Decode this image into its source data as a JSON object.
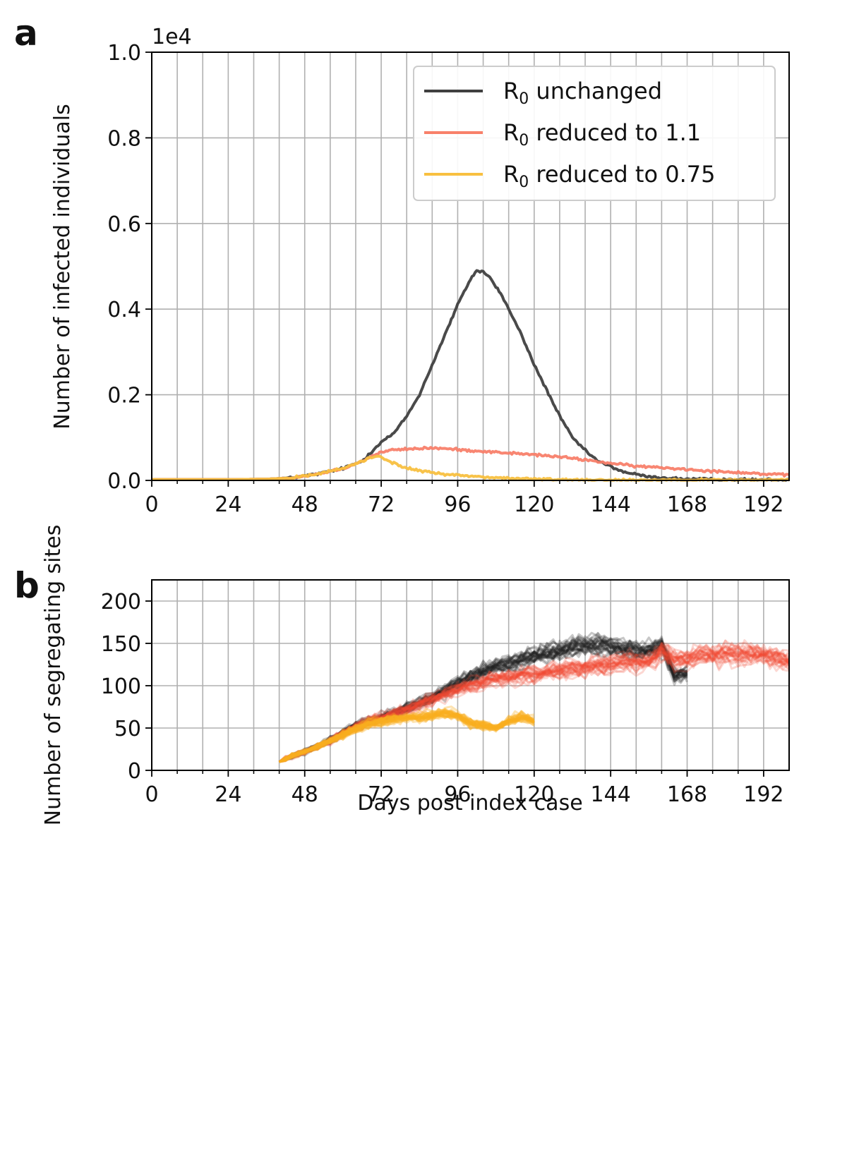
{
  "figure": {
    "panel_a_label": "a",
    "panel_b_label": "b"
  },
  "chart_data": [
    {
      "type": "line",
      "panel": "a",
      "ylabel": "Number of infected individuals",
      "y_offset_label": "1e4",
      "xlim": [
        0,
        200
      ],
      "ylim": [
        0,
        1.0
      ],
      "x_ticks": [
        0,
        24,
        48,
        72,
        96,
        120,
        144,
        168,
        192
      ],
      "x_tick_labels": [
        "0",
        "24",
        "48",
        "72",
        "96",
        "120",
        "144",
        "168",
        "192"
      ],
      "y_ticks": [
        0,
        0.2,
        0.4,
        0.6,
        0.8,
        1.0
      ],
      "y_tick_labels": [
        "0.0",
        "0.2",
        "0.4",
        "0.6",
        "0.8",
        "1.0"
      ],
      "grid": "vertical every 8 days, horizontal at major y ticks",
      "legend_position": "top-right",
      "series": [
        {
          "name": "R₀ unchanged",
          "name_base": "R",
          "name_sub": "0",
          "name_rest": " unchanged",
          "color": "#404040",
          "points": [
            [
              0,
              0.002
            ],
            [
              24,
              0.002
            ],
            [
              36,
              0.003
            ],
            [
              44,
              0.006
            ],
            [
              52,
              0.015
            ],
            [
              60,
              0.028
            ],
            [
              66,
              0.045
            ],
            [
              72,
              0.09
            ],
            [
              76,
              0.11
            ],
            [
              80,
              0.15
            ],
            [
              84,
              0.2
            ],
            [
              88,
              0.27
            ],
            [
              92,
              0.34
            ],
            [
              96,
              0.41
            ],
            [
              100,
              0.47
            ],
            [
              102,
              0.49
            ],
            [
              104,
              0.487
            ],
            [
              106,
              0.475
            ],
            [
              110,
              0.43
            ],
            [
              116,
              0.34
            ],
            [
              120,
              0.27
            ],
            [
              124,
              0.21
            ],
            [
              128,
              0.15
            ],
            [
              132,
              0.1
            ],
            [
              136,
              0.07
            ],
            [
              140,
              0.045
            ],
            [
              148,
              0.02
            ],
            [
              156,
              0.008
            ],
            [
              168,
              0.003
            ],
            [
              200,
              0.001
            ]
          ]
        },
        {
          "name": "R₀ reduced to 1.1",
          "name_base": "R",
          "name_sub": "0",
          "name_rest": " reduced to 1.1",
          "color": "#f8806a",
          "points": [
            [
              0,
              0.002
            ],
            [
              24,
              0.002
            ],
            [
              36,
              0.003
            ],
            [
              44,
              0.006
            ],
            [
              52,
              0.015
            ],
            [
              60,
              0.028
            ],
            [
              66,
              0.045
            ],
            [
              70,
              0.06
            ],
            [
              74,
              0.07
            ],
            [
              80,
              0.073
            ],
            [
              88,
              0.076
            ],
            [
              96,
              0.072
            ],
            [
              104,
              0.068
            ],
            [
              112,
              0.064
            ],
            [
              120,
              0.06
            ],
            [
              128,
              0.055
            ],
            [
              136,
              0.048
            ],
            [
              144,
              0.04
            ],
            [
              152,
              0.033
            ],
            [
              160,
              0.03
            ],
            [
              168,
              0.026
            ],
            [
              176,
              0.022
            ],
            [
              184,
              0.019
            ],
            [
              192,
              0.015
            ],
            [
              200,
              0.012
            ]
          ]
        },
        {
          "name": "R₀ reduced to 0.75",
          "name_base": "R",
          "name_sub": "0",
          "name_rest": " reduced to 0.75",
          "color": "#f8c040",
          "points": [
            [
              0,
              0.002
            ],
            [
              24,
              0.002
            ],
            [
              36,
              0.003
            ],
            [
              44,
              0.006
            ],
            [
              52,
              0.015
            ],
            [
              60,
              0.028
            ],
            [
              66,
              0.045
            ],
            [
              70,
              0.057
            ],
            [
              72,
              0.055
            ],
            [
              76,
              0.04
            ],
            [
              80,
              0.028
            ],
            [
              88,
              0.018
            ],
            [
              96,
              0.012
            ],
            [
              104,
              0.008
            ],
            [
              112,
              0.005
            ],
            [
              120,
              0.003
            ],
            [
              132,
              0.002
            ],
            [
              144,
              0.001
            ],
            [
              200,
              0.001
            ]
          ]
        }
      ]
    },
    {
      "type": "line",
      "panel": "b",
      "xlabel": "Days post index case",
      "ylabel": "Number of segregating sites",
      "xlim": [
        0,
        200
      ],
      "ylim": [
        0,
        225
      ],
      "x_ticks": [
        0,
        24,
        48,
        72,
        96,
        120,
        144,
        168,
        192
      ],
      "x_tick_labels": [
        "0",
        "24",
        "48",
        "72",
        "96",
        "120",
        "144",
        "168",
        "192"
      ],
      "y_ticks": [
        0,
        50,
        100,
        150,
        200
      ],
      "y_tick_labels": [
        "0",
        "50",
        "100",
        "150",
        "200"
      ],
      "grid": "vertical every 8 days, horizontal at major y ticks",
      "series": [
        {
          "group": "R0 unchanged",
          "color": "#202020",
          "opacity": 0.25,
          "replicates": 30,
          "mean": [
            [
              40,
              10
            ],
            [
              44,
              17
            ],
            [
              48,
              22
            ],
            [
              52,
              28
            ],
            [
              56,
              35
            ],
            [
              60,
              44
            ],
            [
              64,
              52
            ],
            [
              68,
              58
            ],
            [
              72,
              62
            ],
            [
              76,
              67
            ],
            [
              80,
              74
            ],
            [
              84,
              80
            ],
            [
              88,
              86
            ],
            [
              92,
              94
            ],
            [
              96,
              103
            ],
            [
              100,
              110
            ],
            [
              104,
              117
            ],
            [
              108,
              122
            ],
            [
              112,
              126
            ],
            [
              116,
              130
            ],
            [
              120,
              135
            ],
            [
              124,
              138
            ],
            [
              128,
              141
            ],
            [
              132,
              145
            ],
            [
              136,
              147
            ],
            [
              140,
              148
            ],
            [
              144,
              146
            ],
            [
              148,
              143
            ],
            [
              152,
              140
            ],
            [
              156,
              142
            ],
            [
              160,
              148
            ],
            [
              164,
              112
            ],
            [
              168,
              115
            ]
          ]
        },
        {
          "group": "R0 reduced to 1.1",
          "color": "#f04830",
          "opacity": 0.22,
          "replicates": 30,
          "mean": [
            [
              40,
              10
            ],
            [
              44,
              17
            ],
            [
              48,
              22
            ],
            [
              52,
              28
            ],
            [
              56,
              35
            ],
            [
              60,
              44
            ],
            [
              64,
              52
            ],
            [
              68,
              58
            ],
            [
              72,
              62
            ],
            [
              76,
              67
            ],
            [
              80,
              72
            ],
            [
              84,
              78
            ],
            [
              88,
              84
            ],
            [
              92,
              90
            ],
            [
              96,
              95
            ],
            [
              100,
              100
            ],
            [
              104,
              105
            ],
            [
              108,
              108
            ],
            [
              112,
              110
            ],
            [
              116,
              112
            ],
            [
              120,
              114
            ],
            [
              124,
              116
            ],
            [
              128,
              118
            ],
            [
              132,
              120
            ],
            [
              136,
              122
            ],
            [
              140,
              124
            ],
            [
              144,
              125
            ],
            [
              148,
              127
            ],
            [
              152,
              128
            ],
            [
              156,
              130
            ],
            [
              160,
              140
            ],
            [
              164,
              130
            ],
            [
              168,
              132
            ],
            [
              172,
              136
            ],
            [
              176,
              137
            ],
            [
              180,
              138
            ],
            [
              184,
              137
            ],
            [
              188,
              138
            ],
            [
              192,
              136
            ],
            [
              196,
              133
            ],
            [
              200,
              130
            ]
          ]
        },
        {
          "group": "R0 reduced to 0.75",
          "color": "#f8b020",
          "opacity": 0.35,
          "replicates": 30,
          "mean": [
            [
              40,
              10
            ],
            [
              44,
              17
            ],
            [
              48,
              22
            ],
            [
              52,
              28
            ],
            [
              56,
              35
            ],
            [
              60,
              42
            ],
            [
              64,
              49
            ],
            [
              68,
              55
            ],
            [
              72,
              58
            ],
            [
              76,
              60
            ],
            [
              80,
              62
            ],
            [
              84,
              63
            ],
            [
              88,
              64
            ],
            [
              92,
              68
            ],
            [
              96,
              65
            ],
            [
              100,
              55
            ],
            [
              104,
              53
            ],
            [
              108,
              50
            ],
            [
              112,
              58
            ],
            [
              116,
              63
            ],
            [
              120,
              58
            ]
          ]
        }
      ]
    }
  ]
}
